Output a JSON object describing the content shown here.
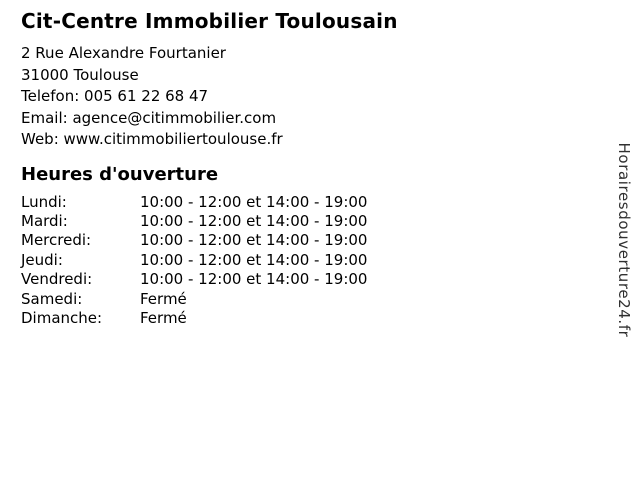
{
  "business": {
    "name": "Cit-Centre Immobilier Toulousain",
    "address_line1": "2 Rue Alexandre Fourtanier",
    "address_line2": "31000 Toulouse",
    "phone_line": "Telefon: 005 61 22 68 47",
    "email_line": "Email: agence@citimmobilier.com",
    "web_line": "Web: www.citimmobiliertoulouse.fr"
  },
  "hours": {
    "heading": "Heures d'ouverture",
    "rows": [
      {
        "day": "Lundi:",
        "time": "10:00 - 12:00 et 14:00 - 19:00"
      },
      {
        "day": "Mardi:",
        "time": "10:00 - 12:00 et 14:00 - 19:00"
      },
      {
        "day": "Mercredi:",
        "time": "10:00 - 12:00 et 14:00 - 19:00"
      },
      {
        "day": "Jeudi:",
        "time": "10:00 - 12:00 et 14:00 - 19:00"
      },
      {
        "day": "Vendredi:",
        "time": "10:00 - 12:00 et 14:00 - 19:00"
      },
      {
        "day": "Samedi:",
        "time": "Fermé"
      },
      {
        "day": "Dimanche:",
        "time": "Fermé"
      }
    ]
  },
  "watermark": {
    "text": "Horairesdouverture24.fr"
  },
  "colors": {
    "background": "#ffffff",
    "text": "#000000",
    "watermark": "#303030"
  }
}
